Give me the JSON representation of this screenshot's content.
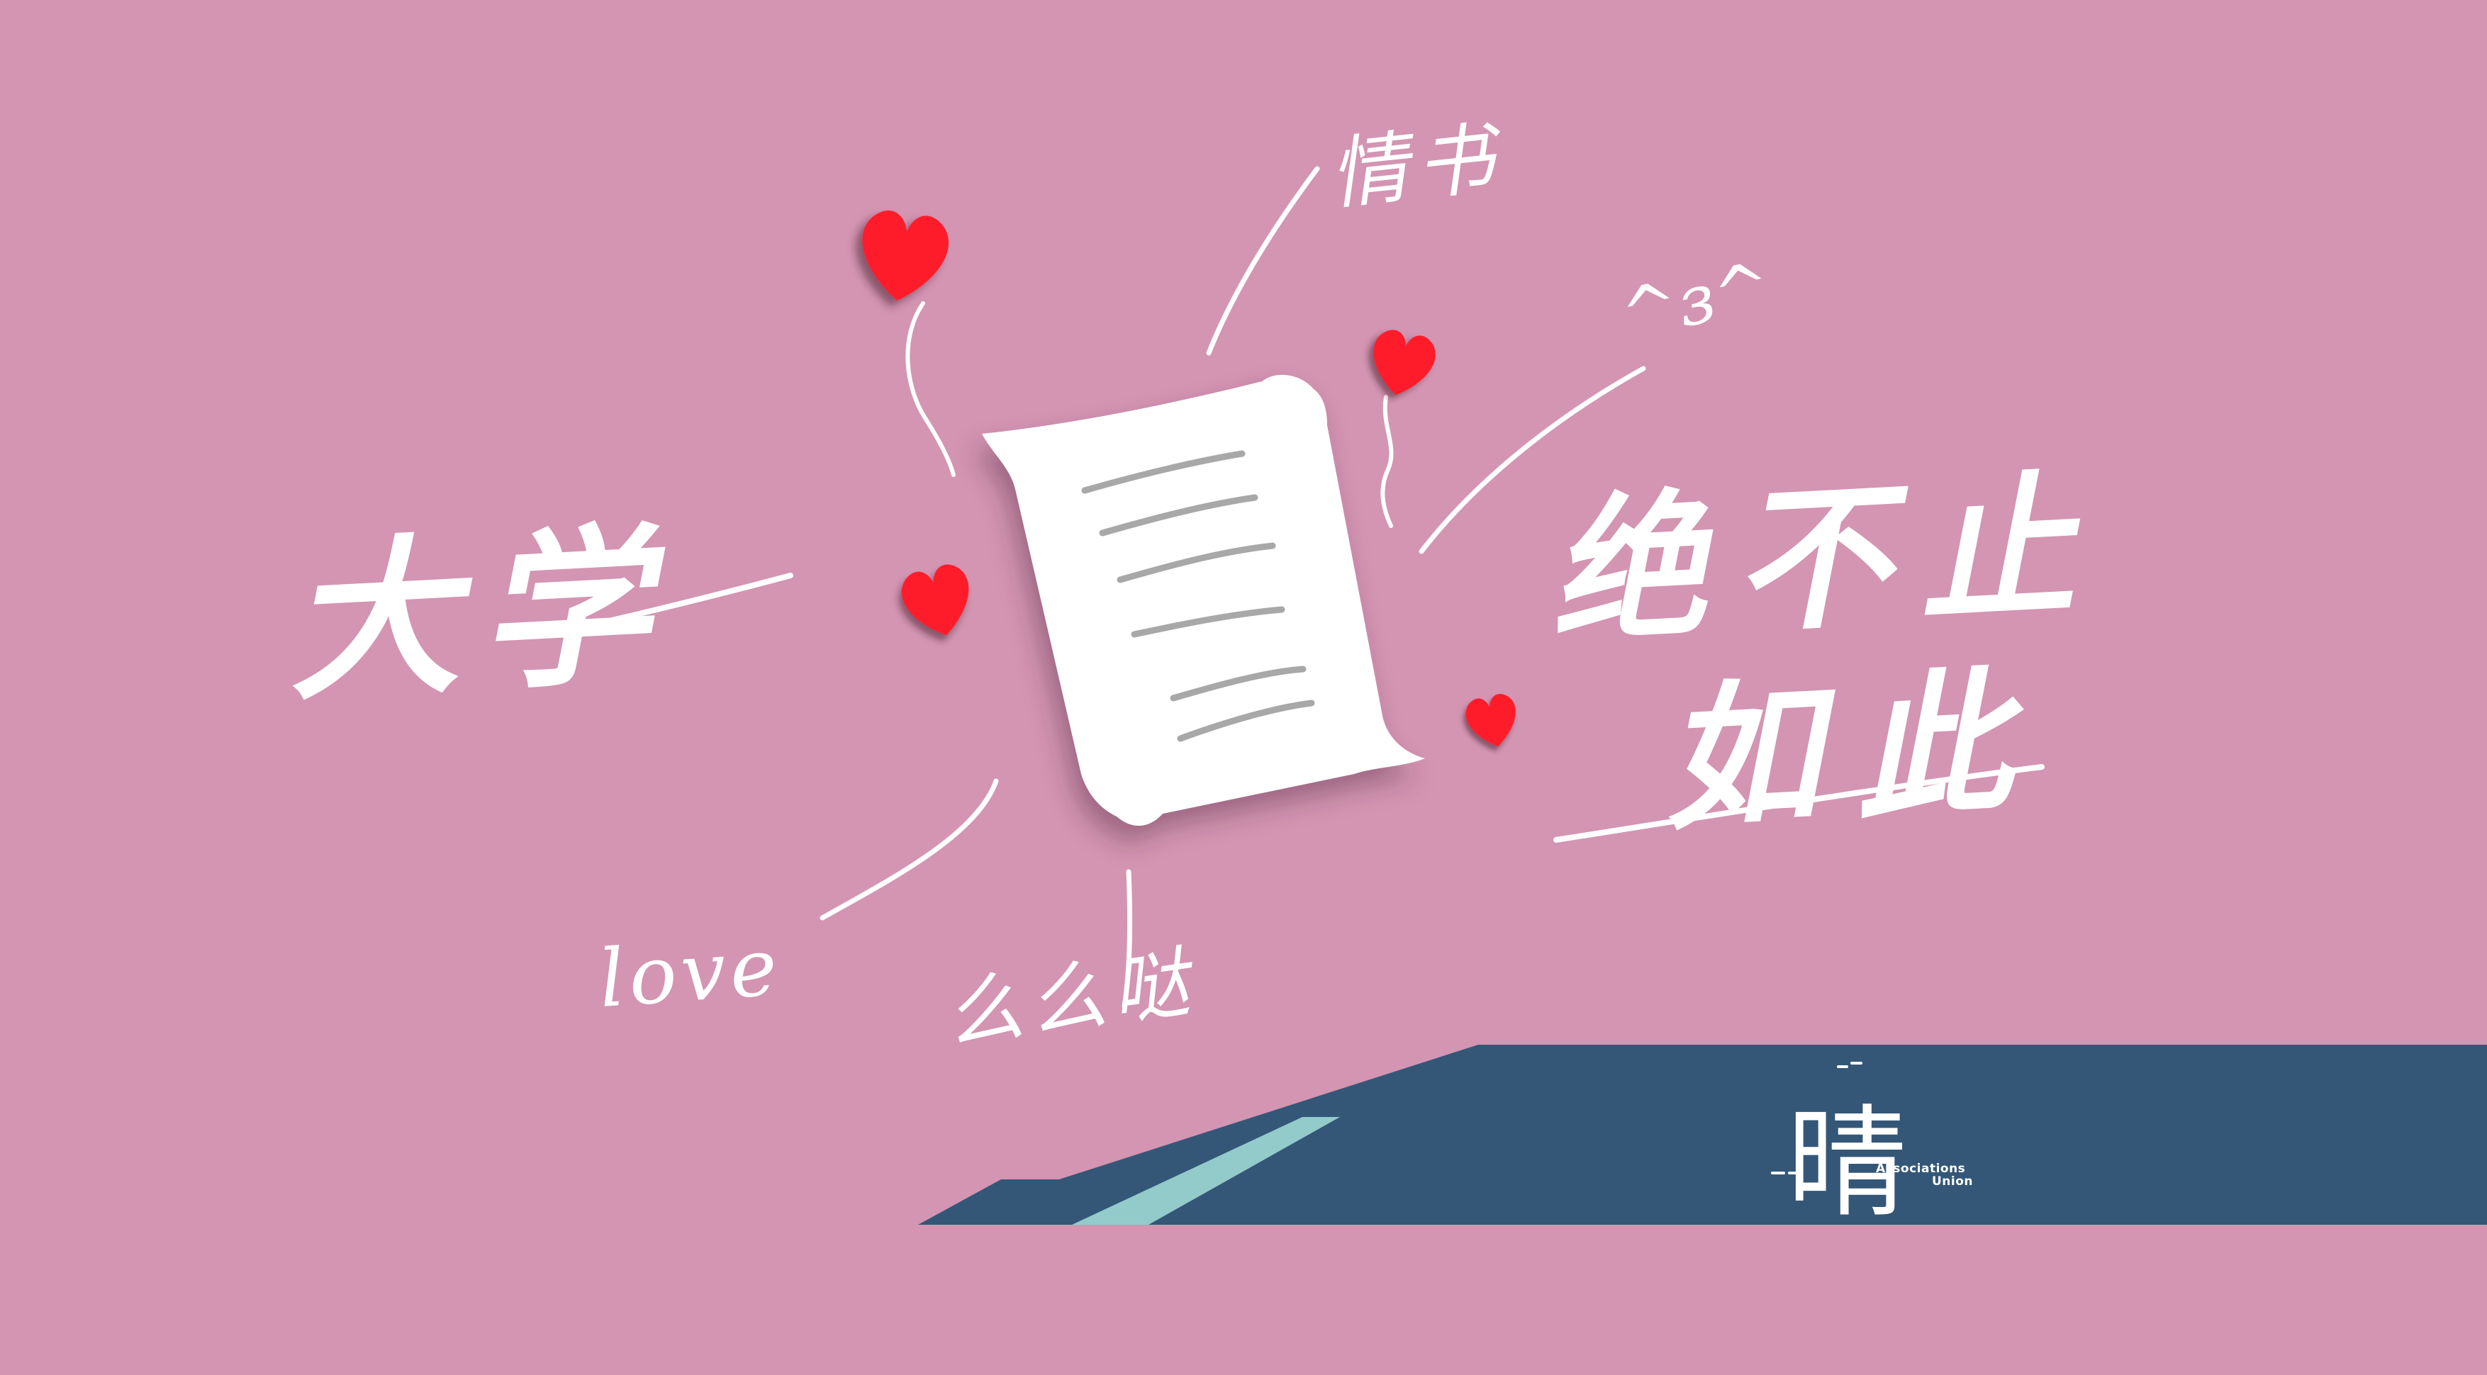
{
  "scene": {
    "background_color": "#d395b2",
    "accent_color": "#ff1f2a",
    "ink_color": "#ffffff",
    "band_color": "#345778",
    "stripe_color": "#93cbcb"
  },
  "handwriting": {
    "left_phrase": "大学",
    "right_phrase_line1": "绝不止",
    "right_phrase_line2": "如此",
    "top_note": "情书",
    "emoticon": "^з^",
    "love_note": "love",
    "bottom_note": "么么哒"
  },
  "logo": {
    "mark": "晴",
    "line1": "Associations",
    "line2": "Union"
  }
}
